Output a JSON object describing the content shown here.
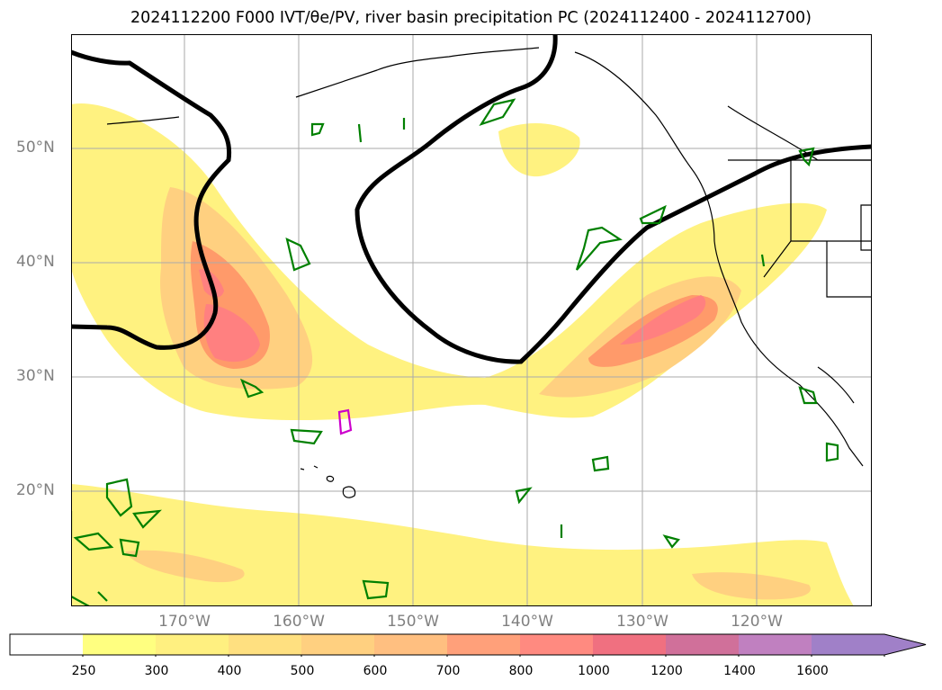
{
  "title": "2024112200 F000 IVT/θe/PV, river basin precipitation PC (2024112400 - 2024112700)",
  "y_labels": [
    "50°N",
    "40°N",
    "30°N",
    "20°N"
  ],
  "x_labels": [
    "170°W",
    "160°W",
    "150°W",
    "140°W",
    "130°W",
    "120°W"
  ],
  "colorbar": {
    "ticks": [
      "250",
      "300",
      "400",
      "500",
      "600",
      "700",
      "800",
      "1000",
      "1200",
      "1400",
      "1600"
    ],
    "colors": [
      "#ffffff",
      "#ffff80",
      "#fff080",
      "#ffe080",
      "#ffd080",
      "#ffbf80",
      "#ffa07a",
      "#ff8a80",
      "#f07080",
      "#d0709a",
      "#c080c0",
      "#a080c8"
    ]
  },
  "map": {
    "grid_lines": "on",
    "fill_colors": {
      "ivt_low": "#fff280",
      "ivt_mid": "#ffd080",
      "ivt_high": "#ff9a6a",
      "ivt_max": "#ff8080"
    },
    "contour_colors": {
      "pv": "#000000",
      "precip": "#008000",
      "precip_alt": "#cc00cc"
    }
  }
}
